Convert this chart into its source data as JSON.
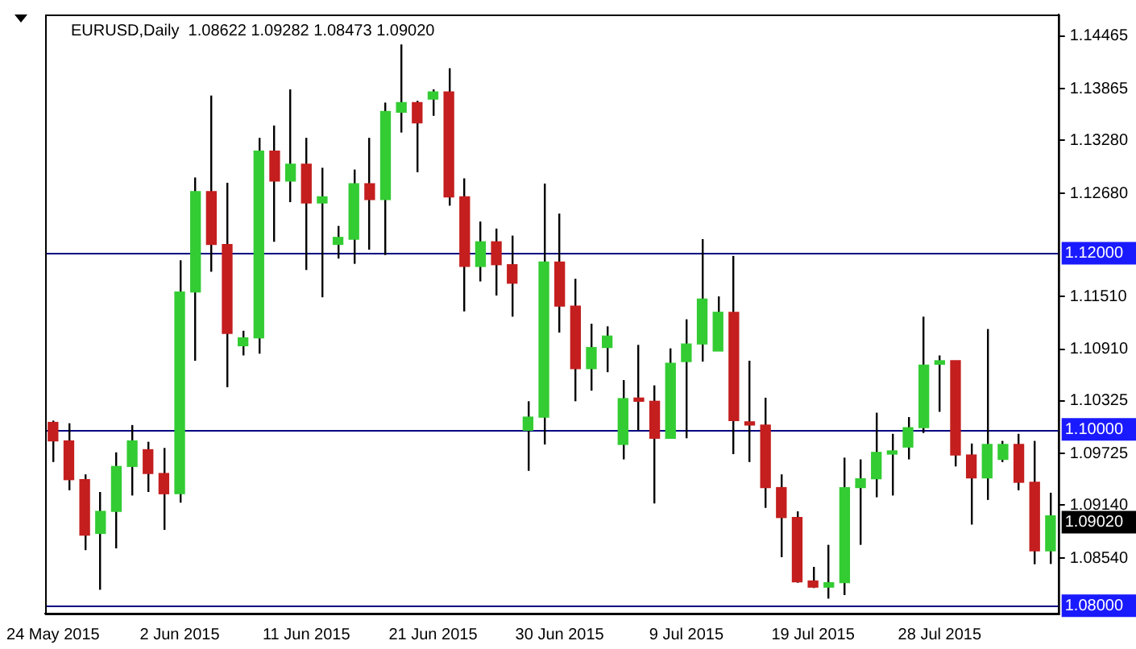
{
  "chart_data": {
    "type": "candlestick",
    "title": "EURUSD,Daily  1.08622 1.09282 1.08473 1.09020",
    "categories": [
      "24 May 2015",
      null,
      null,
      null,
      null,
      null,
      null,
      null,
      "2 Jun 2015",
      null,
      null,
      null,
      null,
      null,
      null,
      null,
      "11 Jun 2015",
      null,
      null,
      null,
      null,
      null,
      null,
      null,
      "21 Jun 2015",
      null,
      null,
      null,
      null,
      null,
      null,
      null,
      "30 Jun 2015",
      null,
      null,
      null,
      null,
      null,
      null,
      null,
      "9 Jul 2015",
      null,
      null,
      null,
      null,
      null,
      null,
      null,
      "19 Jul 2015",
      null,
      null,
      null,
      null,
      null,
      null,
      null,
      "28 Jul 2015",
      null,
      null,
      null,
      null,
      null,
      null,
      null
    ],
    "ohlc": [
      [
        1.1008,
        1.101,
        1.0963,
        1.0987
      ],
      [
        1.0987,
        1.1007,
        1.0931,
        1.0943
      ],
      [
        1.0943,
        1.0949,
        1.0863,
        1.088
      ],
      [
        1.0882,
        1.0929,
        1.0818,
        1.0907
      ],
      [
        1.0907,
        1.0974,
        1.0865,
        1.0958
      ],
      [
        1.0958,
        1.1005,
        1.0925,
        1.0987
      ],
      [
        1.0977,
        1.0986,
        1.0929,
        1.095
      ],
      [
        1.095,
        1.0979,
        1.0886,
        1.0927
      ],
      [
        1.0927,
        1.1192,
        1.0917,
        1.1156
      ],
      [
        1.1156,
        1.1286,
        1.1078,
        1.127
      ],
      [
        1.127,
        1.1379,
        1.1179,
        1.121
      ],
      [
        1.121,
        1.128,
        1.1048,
        1.1109
      ],
      [
        1.1095,
        1.1112,
        1.1084,
        1.1104
      ],
      [
        1.1104,
        1.1331,
        1.1086,
        1.1316
      ],
      [
        1.1316,
        1.1345,
        1.1213,
        1.1282
      ],
      [
        1.1282,
        1.1386,
        1.1258,
        1.1301
      ],
      [
        1.1301,
        1.1331,
        1.1181,
        1.1257
      ],
      [
        1.1257,
        1.1297,
        1.115,
        1.1264
      ],
      [
        1.121,
        1.1231,
        1.1194,
        1.1218
      ],
      [
        1.1216,
        1.1295,
        1.1188,
        1.1279
      ],
      [
        1.1279,
        1.1331,
        1.1204,
        1.1261
      ],
      [
        1.1261,
        1.1371,
        1.1198,
        1.1361
      ],
      [
        1.136,
        1.1437,
        1.1337,
        1.1371
      ],
      [
        1.1371,
        1.1373,
        1.1292,
        1.1348
      ],
      [
        1.1375,
        1.1386,
        1.1356,
        1.1383
      ],
      [
        1.1383,
        1.141,
        1.1254,
        1.1264
      ],
      [
        1.1264,
        1.1285,
        1.1134,
        1.1185
      ],
      [
        1.1185,
        1.1236,
        1.1168,
        1.1213
      ],
      [
        1.1213,
        1.1228,
        1.1152,
        1.1187
      ],
      [
        1.1187,
        1.122,
        1.1128,
        1.1166
      ],
      [
        1.0999,
        1.1032,
        1.0953,
        1.1014
      ],
      [
        1.1014,
        1.1279,
        1.0983,
        1.119
      ],
      [
        1.119,
        1.1245,
        1.111,
        1.114
      ],
      [
        1.114,
        1.1171,
        1.1032,
        1.1069
      ],
      [
        1.1069,
        1.112,
        1.1044,
        1.1093
      ],
      [
        1.1093,
        1.1117,
        1.1065,
        1.1106
      ],
      [
        1.0983,
        1.1056,
        1.0966,
        1.1035
      ],
      [
        1.1035,
        1.1096,
        1.0999,
        1.1032
      ],
      [
        1.1032,
        1.105,
        1.0916,
        1.099
      ],
      [
        1.099,
        1.1092,
        1.099,
        1.1075
      ],
      [
        1.1077,
        1.1125,
        1.099,
        1.1097
      ],
      [
        1.1097,
        1.1216,
        1.1077,
        1.1148
      ],
      [
        1.1089,
        1.1151,
        1.1089,
        1.1133
      ],
      [
        1.1133,
        1.1197,
        1.0972,
        1.101
      ],
      [
        1.1008,
        1.1078,
        1.0963,
        1.1005
      ],
      [
        1.1005,
        1.1036,
        1.0911,
        1.0934
      ],
      [
        1.0934,
        1.0949,
        1.0855,
        1.09
      ],
      [
        1.09,
        1.0907,
        1.0826,
        1.0827
      ],
      [
        1.0828,
        1.0844,
        1.082,
        1.0821
      ],
      [
        1.0821,
        1.0869,
        1.0808,
        1.0826
      ],
      [
        1.0826,
        1.0968,
        1.0812,
        1.0934
      ],
      [
        1.0934,
        1.0966,
        1.0869,
        1.0944
      ],
      [
        1.0944,
        1.1019,
        1.0923,
        1.0974
      ],
      [
        1.0972,
        1.0995,
        1.0925,
        1.0974
      ],
      [
        1.098,
        1.1014,
        1.0966,
        1.1002
      ],
      [
        1.1002,
        1.1128,
        1.0996,
        1.1073
      ],
      [
        1.1074,
        1.1084,
        1.102,
        1.1078
      ],
      [
        1.1078,
        1.1078,
        1.0958,
        1.0971
      ],
      [
        1.0971,
        1.0984,
        1.0892,
        1.0945
      ],
      [
        1.0945,
        1.1114,
        1.092,
        1.0983
      ],
      [
        1.0966,
        1.0987,
        1.0963,
        1.0983
      ],
      [
        1.0983,
        1.0995,
        1.0931,
        1.094
      ],
      [
        1.094,
        1.0987,
        1.0847,
        1.08622
      ],
      [
        1.08622,
        1.09282,
        1.08473,
        1.0902
      ]
    ],
    "colors": [
      "#c41e1e",
      "#c41e1e",
      "#c41e1e",
      "#33cc33",
      "#33cc33",
      "#33cc33",
      "#c41e1e",
      "#c41e1e",
      "#33cc33",
      "#33cc33",
      "#c41e1e",
      "#c41e1e",
      "#33cc33",
      "#33cc33",
      "#c41e1e",
      "#33cc33",
      "#c41e1e",
      "#33cc33",
      "#33cc33",
      "#33cc33",
      "#c41e1e",
      "#33cc33",
      "#33cc33",
      "#c41e1e",
      "#33cc33",
      "#c41e1e",
      "#c41e1e",
      "#33cc33",
      "#c41e1e",
      "#c41e1e",
      "#33cc33",
      "#33cc33",
      "#c41e1e",
      "#c41e1e",
      "#33cc33",
      "#33cc33",
      "#33cc33",
      "#c41e1e",
      "#c41e1e",
      "#33cc33",
      "#33cc33",
      "#33cc33",
      "#33cc33",
      "#c41e1e",
      "#c41e1e",
      "#c41e1e",
      "#c41e1e",
      "#c41e1e",
      "#c41e1e",
      "#33cc33",
      "#33cc33",
      "#33cc33",
      "#33cc33",
      "#33cc33",
      "#33cc33",
      "#33cc33",
      "#33cc33",
      "#c41e1e",
      "#c41e1e",
      "#33cc33",
      "#33cc33",
      "#c41e1e",
      "#c41e1e",
      "#33cc33"
    ],
    "ylim": [
      1.0791,
      1.1471
    ],
    "yticks": [
      {
        "value": 1.14465,
        "label": "1.14465"
      },
      {
        "value": 1.13865,
        "label": "1.13865"
      },
      {
        "value": 1.1328,
        "label": "1.13280"
      },
      {
        "value": 1.1268,
        "label": "1.12680"
      },
      {
        "value": 1.1151,
        "label": "1.11510"
      },
      {
        "value": 1.1091,
        "label": "1.10910"
      },
      {
        "value": 1.10325,
        "label": "1.10325"
      },
      {
        "value": 1.09725,
        "label": "1.09725"
      },
      {
        "value": 1.0914,
        "label": "1.09140"
      },
      {
        "value": 1.0854,
        "label": "1.08540"
      }
    ],
    "ref_lines": [
      {
        "axis": "y",
        "value": 1.12,
        "label": "1.12000",
        "color": "#000080"
      },
      {
        "axis": "y",
        "value": 1.1,
        "label": "1.10000",
        "color": "#000080"
      },
      {
        "axis": "y",
        "value": 1.08,
        "label": "1.08000",
        "color": "#000080"
      }
    ],
    "annotations": [
      "1.09020"
    ],
    "grid": false,
    "legend": false
  }
}
